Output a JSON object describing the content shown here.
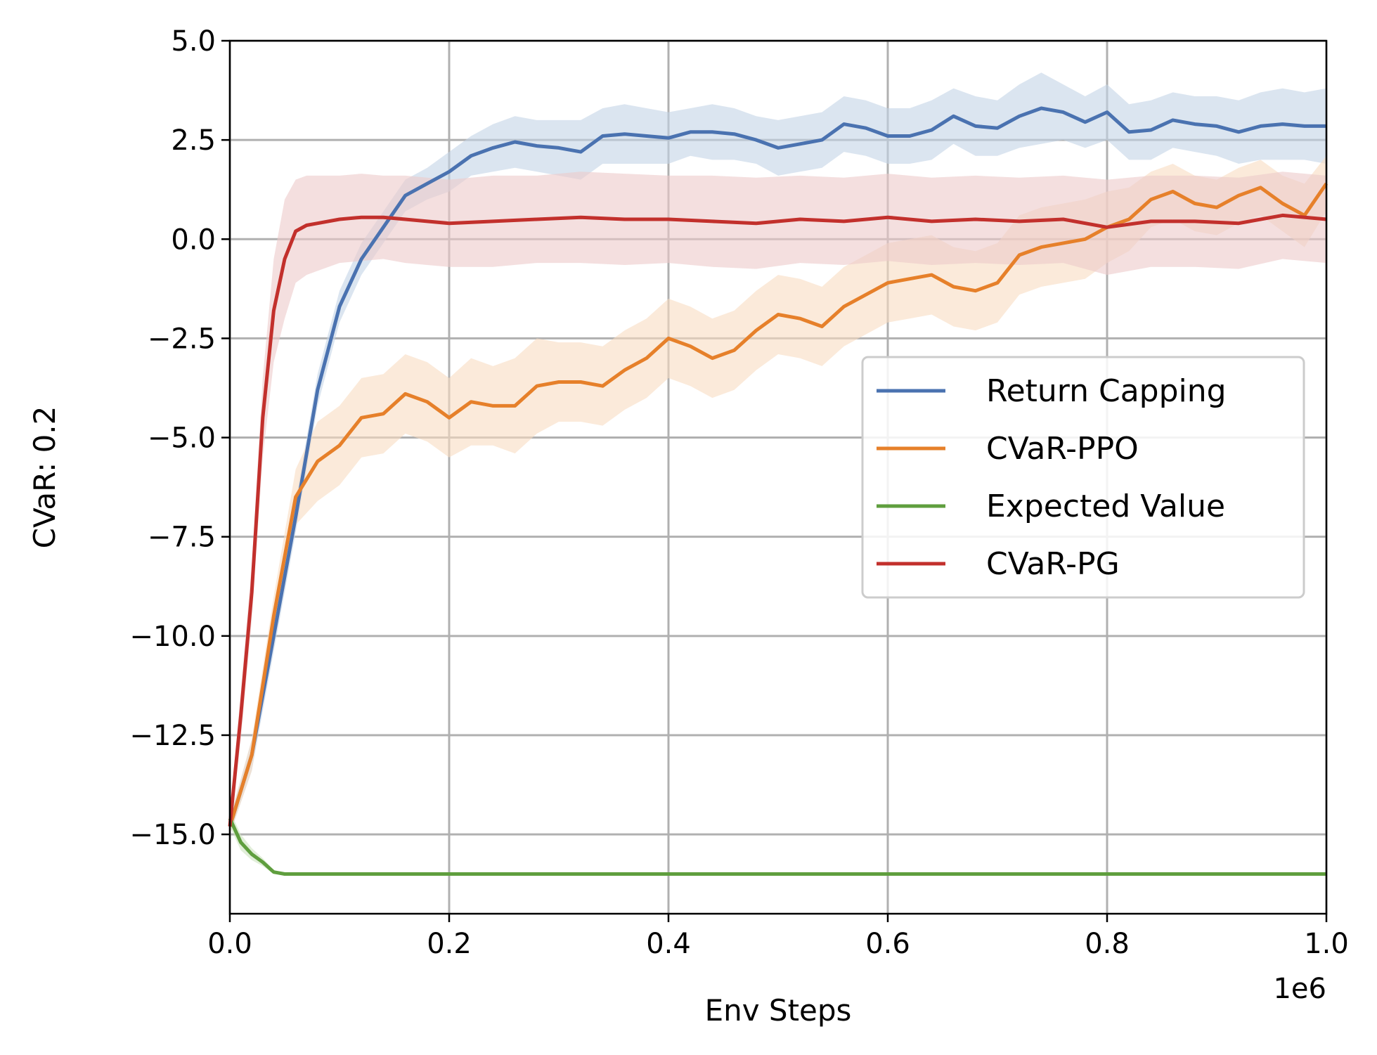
{
  "chart_data": {
    "type": "line",
    "xlabel": "Env Steps",
    "ylabel": "CVaR: 0.2",
    "x_offset_label": "1e6",
    "xlim": [
      0,
      1000000
    ],
    "ylim": [
      -17,
      5
    ],
    "xscale_divisor": 1000000,
    "xticks": [
      0,
      200000,
      400000,
      600000,
      800000,
      1000000
    ],
    "xtick_labels": [
      "0.0",
      "0.2",
      "0.4",
      "0.6",
      "0.8",
      "1.0"
    ],
    "yticks": [
      5,
      2.5,
      0,
      -2.5,
      -5,
      -7.5,
      -10,
      -12.5,
      -15
    ],
    "ytick_labels": [
      "5.0",
      "2.5",
      "0.0",
      "−2.5",
      "−5.0",
      "−7.5",
      "−10.0",
      "−12.5",
      "−15.0"
    ],
    "grid": true,
    "legend_position": "center-right",
    "series": [
      {
        "name": "Return Capping",
        "color": "#4a72b0",
        "fill_color": "#c3d3e6",
        "x": [
          0,
          20000,
          40000,
          60000,
          80000,
          100000,
          120000,
          140000,
          160000,
          180000,
          200000,
          220000,
          240000,
          260000,
          280000,
          300000,
          320000,
          340000,
          360000,
          380000,
          400000,
          420000,
          440000,
          460000,
          480000,
          500000,
          520000,
          540000,
          560000,
          580000,
          600000,
          620000,
          640000,
          660000,
          680000,
          700000,
          720000,
          740000,
          760000,
          780000,
          800000,
          820000,
          840000,
          860000,
          880000,
          900000,
          920000,
          940000,
          960000,
          980000,
          1000000
        ],
        "y": [
          -14.8,
          -13.0,
          -10.0,
          -7.0,
          -3.8,
          -1.7,
          -0.5,
          0.3,
          1.1,
          1.4,
          1.7,
          2.1,
          2.3,
          2.45,
          2.35,
          2.3,
          2.2,
          2.6,
          2.65,
          2.6,
          2.55,
          2.7,
          2.7,
          2.65,
          2.5,
          2.3,
          2.4,
          2.5,
          2.9,
          2.8,
          2.6,
          2.6,
          2.75,
          3.1,
          2.85,
          2.8,
          3.1,
          3.3,
          3.2,
          2.95,
          3.2,
          2.7,
          2.75,
          3.0,
          2.9,
          2.85,
          2.7,
          2.85,
          2.9,
          2.85,
          2.85
        ],
        "upper": [
          -14.6,
          -12.6,
          -9.6,
          -6.6,
          -3.4,
          -1.3,
          -0.1,
          0.7,
          1.5,
          1.8,
          2.2,
          2.6,
          2.9,
          3.1,
          3.0,
          3.0,
          3.0,
          3.3,
          3.4,
          3.3,
          3.2,
          3.3,
          3.4,
          3.3,
          3.1,
          3.0,
          3.1,
          3.2,
          3.6,
          3.5,
          3.3,
          3.3,
          3.5,
          3.8,
          3.6,
          3.5,
          3.9,
          4.2,
          3.9,
          3.6,
          3.9,
          3.4,
          3.5,
          3.7,
          3.6,
          3.6,
          3.5,
          3.7,
          3.8,
          3.7,
          3.8
        ],
        "lower": [
          -15.0,
          -13.4,
          -10.4,
          -7.4,
          -4.2,
          -2.1,
          -0.9,
          -0.1,
          0.7,
          1.0,
          1.2,
          1.6,
          1.7,
          1.8,
          1.7,
          1.6,
          1.5,
          1.9,
          1.9,
          1.9,
          1.9,
          2.1,
          2.0,
          2.0,
          1.9,
          1.6,
          1.7,
          1.8,
          2.2,
          2.1,
          1.9,
          1.9,
          2.0,
          2.4,
          2.1,
          2.1,
          2.3,
          2.4,
          2.5,
          2.3,
          2.5,
          2.0,
          2.0,
          2.3,
          2.2,
          2.1,
          1.9,
          2.0,
          2.0,
          2.0,
          1.9
        ]
      },
      {
        "name": "CVaR-PPO",
        "color": "#e6802a",
        "fill_color": "#f8dcc2",
        "x": [
          0,
          20000,
          40000,
          60000,
          80000,
          100000,
          120000,
          140000,
          160000,
          180000,
          200000,
          220000,
          240000,
          260000,
          280000,
          300000,
          320000,
          340000,
          360000,
          380000,
          400000,
          420000,
          440000,
          460000,
          480000,
          500000,
          520000,
          540000,
          560000,
          580000,
          600000,
          620000,
          640000,
          660000,
          680000,
          700000,
          720000,
          740000,
          760000,
          780000,
          800000,
          820000,
          840000,
          860000,
          880000,
          900000,
          920000,
          940000,
          960000,
          980000,
          1000000
        ],
        "y": [
          -14.8,
          -13.0,
          -9.5,
          -6.5,
          -5.6,
          -5.2,
          -4.5,
          -4.4,
          -3.9,
          -4.1,
          -4.5,
          -4.1,
          -4.2,
          -4.2,
          -3.7,
          -3.6,
          -3.6,
          -3.7,
          -3.3,
          -3.0,
          -2.5,
          -2.7,
          -3.0,
          -2.8,
          -2.3,
          -1.9,
          -2.0,
          -2.2,
          -1.7,
          -1.4,
          -1.1,
          -1.0,
          -0.9,
          -1.2,
          -1.3,
          -1.1,
          -0.4,
          -0.2,
          -0.1,
          0.0,
          0.3,
          0.5,
          1.0,
          1.2,
          0.9,
          0.8,
          1.1,
          1.3,
          0.9,
          0.6,
          1.4
        ],
        "upper": [
          -14.6,
          -12.6,
          -9.0,
          -5.8,
          -4.6,
          -4.2,
          -3.5,
          -3.4,
          -2.9,
          -3.1,
          -3.5,
          -3.0,
          -3.2,
          -3.0,
          -2.5,
          -2.6,
          -2.6,
          -2.7,
          -2.3,
          -2.0,
          -1.5,
          -1.7,
          -2.0,
          -1.8,
          -1.3,
          -0.9,
          -1.0,
          -1.2,
          -0.7,
          -0.4,
          -0.1,
          0.0,
          0.1,
          -0.2,
          -0.3,
          -0.1,
          0.6,
          0.8,
          0.9,
          1.0,
          1.2,
          1.3,
          1.7,
          1.9,
          1.6,
          1.5,
          1.8,
          2.0,
          1.6,
          1.4,
          2.1
        ],
        "lower": [
          -15.0,
          -13.4,
          -10.0,
          -7.2,
          -6.6,
          -6.2,
          -5.5,
          -5.4,
          -4.9,
          -5.1,
          -5.5,
          -5.2,
          -5.2,
          -5.4,
          -4.9,
          -4.6,
          -4.6,
          -4.7,
          -4.3,
          -4.0,
          -3.5,
          -3.7,
          -4.0,
          -3.8,
          -3.3,
          -2.9,
          -3.0,
          -3.2,
          -2.7,
          -2.4,
          -2.1,
          -2.0,
          -1.9,
          -2.2,
          -2.3,
          -2.1,
          -1.4,
          -1.2,
          -1.1,
          -1.0,
          -0.6,
          -0.3,
          0.3,
          0.5,
          0.2,
          0.1,
          0.4,
          0.6,
          0.2,
          -0.2,
          0.7
        ]
      },
      {
        "name": "Expected Value",
        "color": "#5f9e3e",
        "fill_color": "#cde2c0",
        "x": [
          0,
          10000,
          20000,
          30000,
          40000,
          50000,
          60000,
          100000,
          200000,
          400000,
          600000,
          800000,
          1000000
        ],
        "y": [
          -14.6,
          -15.2,
          -15.5,
          -15.7,
          -15.95,
          -16.0,
          -16.0,
          -16.0,
          -16.0,
          -16.0,
          -16.0,
          -16.0,
          -16.0
        ],
        "upper": [
          -14.4,
          -15.0,
          -15.35,
          -15.6,
          -15.9,
          -15.98,
          -16.0,
          -16.0,
          -16.0,
          -16.0,
          -16.0,
          -16.0,
          -16.0
        ],
        "lower": [
          -14.8,
          -15.4,
          -15.65,
          -15.8,
          -16.0,
          -16.02,
          -16.0,
          -16.0,
          -16.0,
          -16.0,
          -16.0,
          -16.0,
          -16.0
        ]
      },
      {
        "name": "CVaR-PG",
        "color": "#c2302c",
        "fill_color": "#eccaca",
        "x": [
          0,
          10000,
          20000,
          30000,
          40000,
          50000,
          60000,
          70000,
          80000,
          100000,
          120000,
          140000,
          160000,
          180000,
          200000,
          240000,
          280000,
          320000,
          360000,
          400000,
          440000,
          480000,
          520000,
          560000,
          600000,
          640000,
          680000,
          720000,
          760000,
          800000,
          840000,
          880000,
          920000,
          960000,
          1000000
        ],
        "y": [
          -14.8,
          -12.0,
          -8.9,
          -4.5,
          -1.8,
          -0.5,
          0.2,
          0.35,
          0.4,
          0.5,
          0.55,
          0.55,
          0.5,
          0.45,
          0.4,
          0.45,
          0.5,
          0.55,
          0.5,
          0.5,
          0.45,
          0.4,
          0.5,
          0.45,
          0.55,
          0.45,
          0.5,
          0.45,
          0.5,
          0.3,
          0.45,
          0.45,
          0.4,
          0.6,
          0.5
        ],
        "upper": [
          -14.5,
          -11.4,
          -8.2,
          -3.5,
          -0.5,
          1.0,
          1.5,
          1.6,
          1.6,
          1.6,
          1.65,
          1.6,
          1.6,
          1.55,
          1.5,
          1.6,
          1.6,
          1.7,
          1.65,
          1.6,
          1.6,
          1.55,
          1.6,
          1.55,
          1.65,
          1.55,
          1.6,
          1.55,
          1.6,
          1.5,
          1.6,
          1.6,
          1.55,
          1.7,
          1.6
        ],
        "lower": [
          -15.1,
          -12.6,
          -9.6,
          -5.5,
          -3.1,
          -2.0,
          -1.1,
          -0.9,
          -0.8,
          -0.6,
          -0.55,
          -0.5,
          -0.6,
          -0.65,
          -0.7,
          -0.7,
          -0.6,
          -0.6,
          -0.65,
          -0.6,
          -0.7,
          -0.75,
          -0.6,
          -0.65,
          -0.55,
          -0.65,
          -0.6,
          -0.65,
          -0.6,
          -0.9,
          -0.7,
          -0.7,
          -0.75,
          -0.5,
          -0.6
        ]
      }
    ]
  }
}
